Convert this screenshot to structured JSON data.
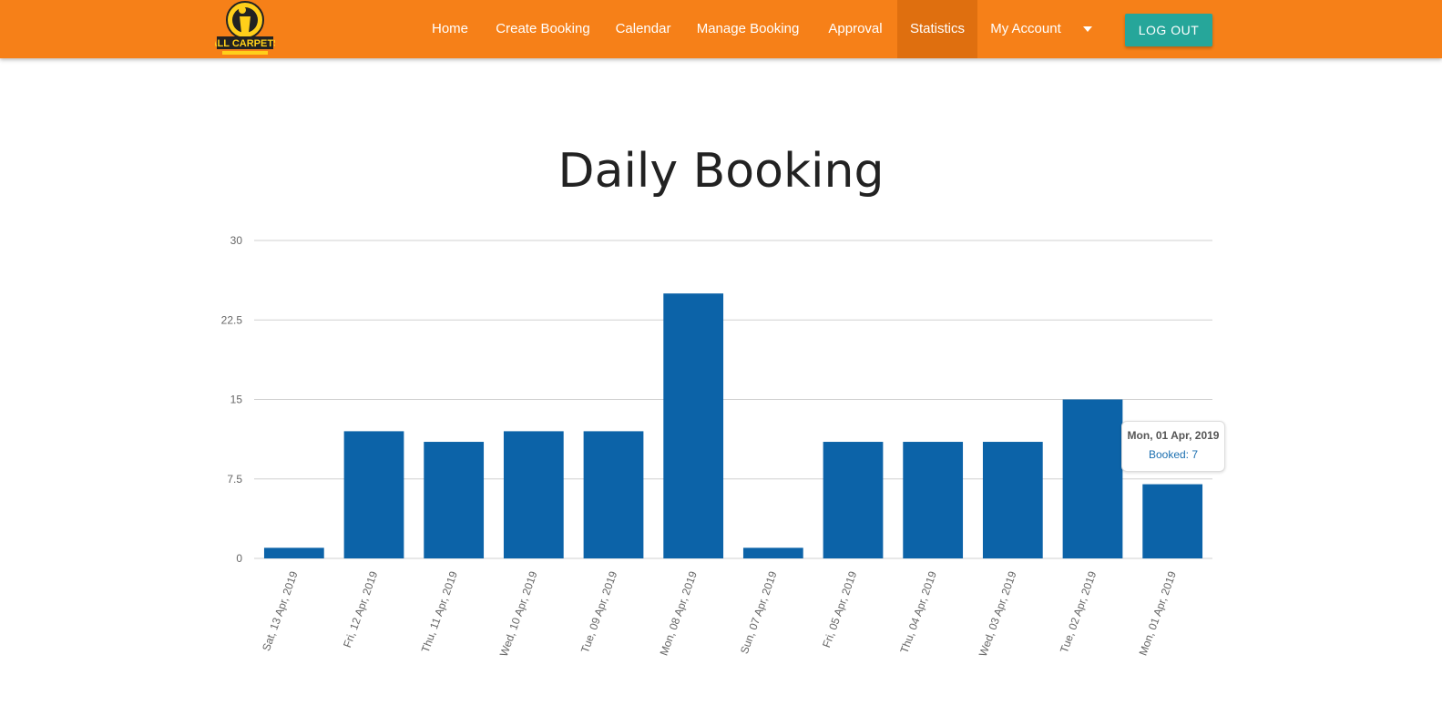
{
  "header": {
    "logo_text": "ALL CARPETS",
    "nav": [
      {
        "label": "Home"
      },
      {
        "label": "Create Booking"
      },
      {
        "label": "Calendar"
      },
      {
        "label": "Manage Booking"
      },
      {
        "label": "Approval"
      },
      {
        "label": "Statistics",
        "active": true
      },
      {
        "label": "My Account"
      }
    ],
    "logout_label": "LOG OUT"
  },
  "colors": {
    "navbar": "#f68018",
    "nav_active": "#df6f0f",
    "logout_button": "#26a69a",
    "bar": "#0c63a8"
  },
  "icons": {
    "account_dropdown": "caret-down-icon"
  },
  "chart_data": {
    "type": "bar",
    "title": "Daily Booking",
    "categories": [
      "Sat, 13 Apr, 2019",
      "Fri, 12 Apr, 2019",
      "Thu, 11 Apr, 2019",
      "Wed, 10 Apr, 2019",
      "Tue, 09 Apr, 2019",
      "Mon, 08 Apr, 2019",
      "Sun, 07 Apr, 2019",
      "Fri, 05 Apr, 2019",
      "Thu, 04 Apr, 2019",
      "Wed, 03 Apr, 2019",
      "Tue, 02 Apr, 2019",
      "Mon, 01 Apr, 2019"
    ],
    "series": [
      {
        "name": "Booked",
        "values": [
          1,
          12,
          11,
          12,
          12,
          25,
          1,
          11,
          11,
          11,
          15,
          7
        ]
      }
    ],
    "yticks": [
      "0",
      "7.5",
      "15",
      "22.5",
      "30"
    ],
    "ylim": [
      0,
      30
    ],
    "grid": true,
    "legend": "none",
    "tooltip": {
      "title": "Mon, 01 Apr, 2019",
      "value_text": "Booked: 7"
    }
  }
}
